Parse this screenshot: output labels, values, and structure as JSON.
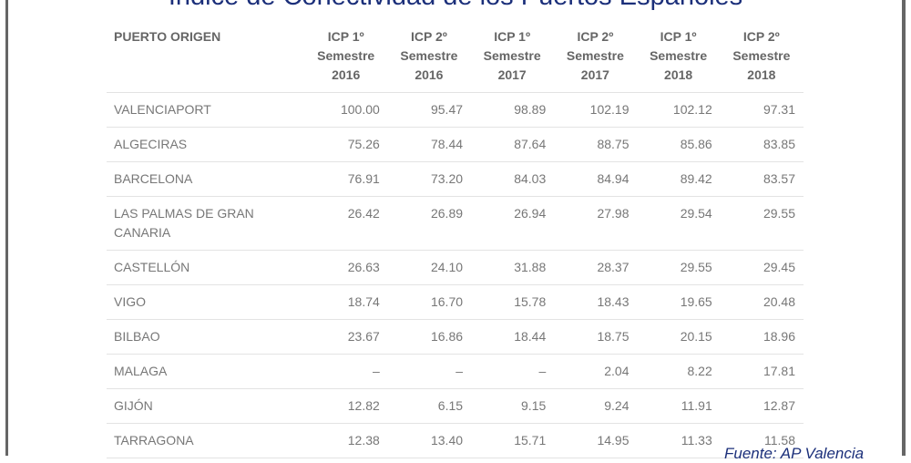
{
  "title": "Índice de Conectividad de los Puertos Españoles",
  "columns": [
    {
      "label": "PUERTO ORIGEN"
    },
    {
      "label": "ICP 1º Semestre 2016"
    },
    {
      "label": "ICP 2º Semestre 2016"
    },
    {
      "label": "ICP 1º Semestre 2017"
    },
    {
      "label": "ICP 2º Semestre 2017"
    },
    {
      "label": "ICP 1º Semestre 2018"
    },
    {
      "label": "ICP 2º Semestre 2018"
    }
  ],
  "rows": [
    [
      "VALENCIAPORT",
      "100.00",
      "95.47",
      "98.89",
      "102.19",
      "102.12",
      "97.31"
    ],
    [
      "ALGECIRAS",
      "75.26",
      "78.44",
      "87.64",
      "88.75",
      "85.86",
      "83.85"
    ],
    [
      "BARCELONA",
      "76.91",
      "73.20",
      "84.03",
      "84.94",
      "89.42",
      "83.57"
    ],
    [
      "LAS PALMAS DE GRAN CANARIA",
      "26.42",
      "26.89",
      "26.94",
      "27.98",
      "29.54",
      "29.55"
    ],
    [
      "CASTELLÓN",
      "26.63",
      "24.10",
      "31.88",
      "28.37",
      "29.55",
      "29.45"
    ],
    [
      "VIGO",
      "18.74",
      "16.70",
      "15.78",
      "18.43",
      "19.65",
      "20.48"
    ],
    [
      "BILBAO",
      "23.67",
      "16.86",
      "18.44",
      "18.75",
      "20.15",
      "18.96"
    ],
    [
      "MALAGA",
      "–",
      "–",
      "–",
      "2.04",
      "8.22",
      "17.81"
    ],
    [
      "GIJÓN",
      "12.82",
      "6.15",
      "9.15",
      "9.24",
      "11.91",
      "12.87"
    ],
    [
      "TARRAGONA",
      "12.38",
      "13.40",
      "15.71",
      "14.95",
      "11.33",
      "11.58"
    ]
  ],
  "source": "Fuente: AP Valencia"
}
